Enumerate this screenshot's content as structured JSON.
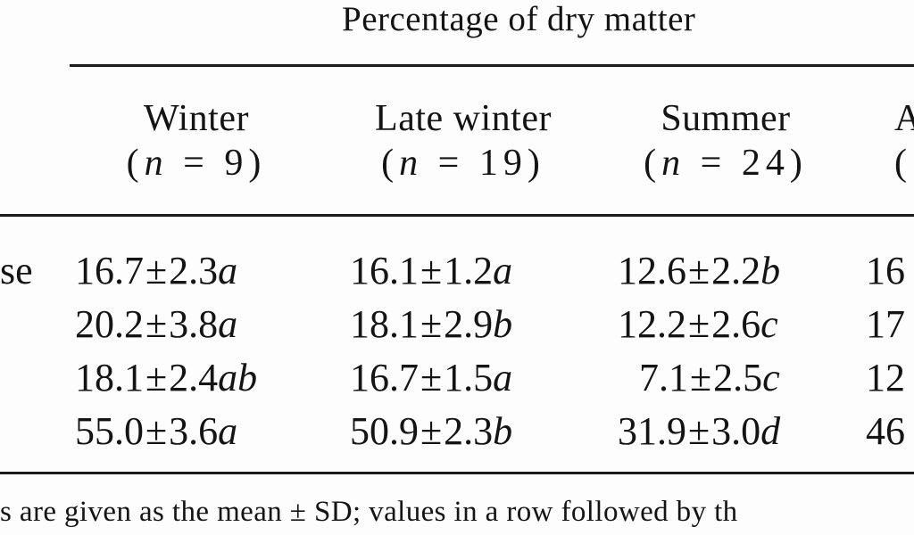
{
  "table": {
    "spanner": "Percentage of dry matter",
    "columns": [
      {
        "name": "Winter",
        "n_label": "n",
        "n_value": "= 9)",
        "open": "("
      },
      {
        "name": "Late winter",
        "n_label": "n",
        "n_value": "= 19)",
        "open": "("
      },
      {
        "name": "Summer",
        "n_label": "n",
        "n_value": "= 24)",
        "open": "("
      },
      {
        "name": "A",
        "n_label": "",
        "n_value": "",
        "open": "("
      }
    ],
    "row_labels": [
      "se",
      "",
      "",
      ""
    ],
    "rows": [
      [
        {
          "value": "16.7",
          "pm": "±",
          "sd": "2.3",
          "letter": "a"
        },
        {
          "value": "16.1",
          "pm": "±",
          "sd": "1.2",
          "letter": "a"
        },
        {
          "value": "12.6",
          "pm": "±",
          "sd": "2.2",
          "letter": "b"
        },
        {
          "value": "16",
          "pm": "",
          "sd": "",
          "letter": ""
        }
      ],
      [
        {
          "value": "20.2",
          "pm": "±",
          "sd": "3.8",
          "letter": "a"
        },
        {
          "value": "18.1",
          "pm": "±",
          "sd": "2.9",
          "letter": "b"
        },
        {
          "value": "12.2",
          "pm": "±",
          "sd": "2.6",
          "letter": "c"
        },
        {
          "value": "17",
          "pm": "",
          "sd": "",
          "letter": ""
        }
      ],
      [
        {
          "value": "18.1",
          "pm": "±",
          "sd": "2.4",
          "letter": "ab"
        },
        {
          "value": "16.7",
          "pm": "±",
          "sd": "1.5",
          "letter": "a"
        },
        {
          "value": "7.1",
          "pm": "±",
          "sd": "2.5",
          "letter": "c"
        },
        {
          "value": "12",
          "pm": "",
          "sd": "",
          "letter": ""
        }
      ],
      [
        {
          "value": "55.0",
          "pm": "±",
          "sd": "3.6",
          "letter": "a"
        },
        {
          "value": "50.9",
          "pm": "±",
          "sd": "2.3",
          "letter": "b"
        },
        {
          "value": "31.9",
          "pm": "±",
          "sd": "3.0",
          "letter": "d"
        },
        {
          "value": "46",
          "pm": "",
          "sd": "",
          "letter": ""
        }
      ]
    ],
    "footnote": "s are given as the mean ± SD; values in a row followed by th"
  }
}
